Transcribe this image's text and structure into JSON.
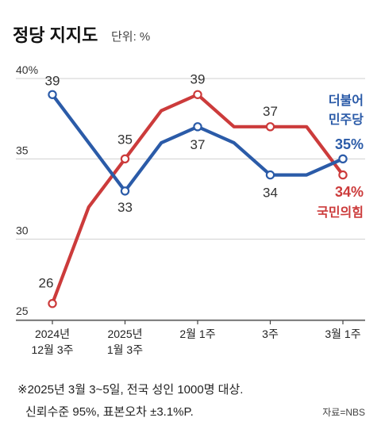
{
  "header": {
    "title": "정당 지지도",
    "unit": "단위: %"
  },
  "chart_data": {
    "type": "line",
    "title": "정당 지지도",
    "unit": "단위: %",
    "x": [
      "2024년 12월 3주",
      "",
      "2025년 1월 3주",
      "",
      "2월 1주",
      "",
      "3주",
      "",
      "3월 1주"
    ],
    "x_tick_labels": [
      {
        "index": 0,
        "lines": [
          "2024년",
          "12월 3주"
        ]
      },
      {
        "index": 2,
        "lines": [
          "2025년",
          "1월 3주"
        ]
      },
      {
        "index": 4,
        "lines": [
          "2월 1주"
        ]
      },
      {
        "index": 6,
        "lines": [
          "3주"
        ]
      },
      {
        "index": 8,
        "lines": [
          "3월 1주"
        ]
      }
    ],
    "y_ticks": [
      "40%",
      "35",
      "30",
      "25"
    ],
    "y_tick_values": [
      40,
      35,
      30,
      25
    ],
    "ylim": [
      25,
      40
    ],
    "grid": true,
    "series": [
      {
        "name": "더불어민주당",
        "name_lines": [
          "더불어",
          "민주당"
        ],
        "end_label": "35%",
        "color": "#2b5ba8",
        "values": [
          39,
          null,
          33,
          36,
          37,
          36,
          34,
          34,
          35
        ],
        "labels": [
          {
            "index": 0,
            "text": "39"
          },
          {
            "index": 2,
            "text": "33"
          },
          {
            "index": 4,
            "text": "37"
          },
          {
            "index": 6,
            "text": "34"
          }
        ]
      },
      {
        "name": "국민의힘",
        "name_lines": [
          "국민의힘"
        ],
        "end_label": "34%",
        "color": "#cc3b3b",
        "values": [
          26,
          32,
          35,
          38,
          39,
          37,
          37,
          37,
          34
        ],
        "labels": [
          {
            "index": 0,
            "text": "26"
          },
          {
            "index": 2,
            "text": "35"
          },
          {
            "index": 4,
            "text": "39"
          },
          {
            "index": 6,
            "text": "37"
          }
        ]
      }
    ]
  },
  "footer": {
    "note_line1": "※2025년 3월 3~5일, 전국 성인 1000명 대상.",
    "note_line2": "신뢰수준 95%, 표본오차 ±3.1%P.",
    "source": "자료=NBS"
  }
}
